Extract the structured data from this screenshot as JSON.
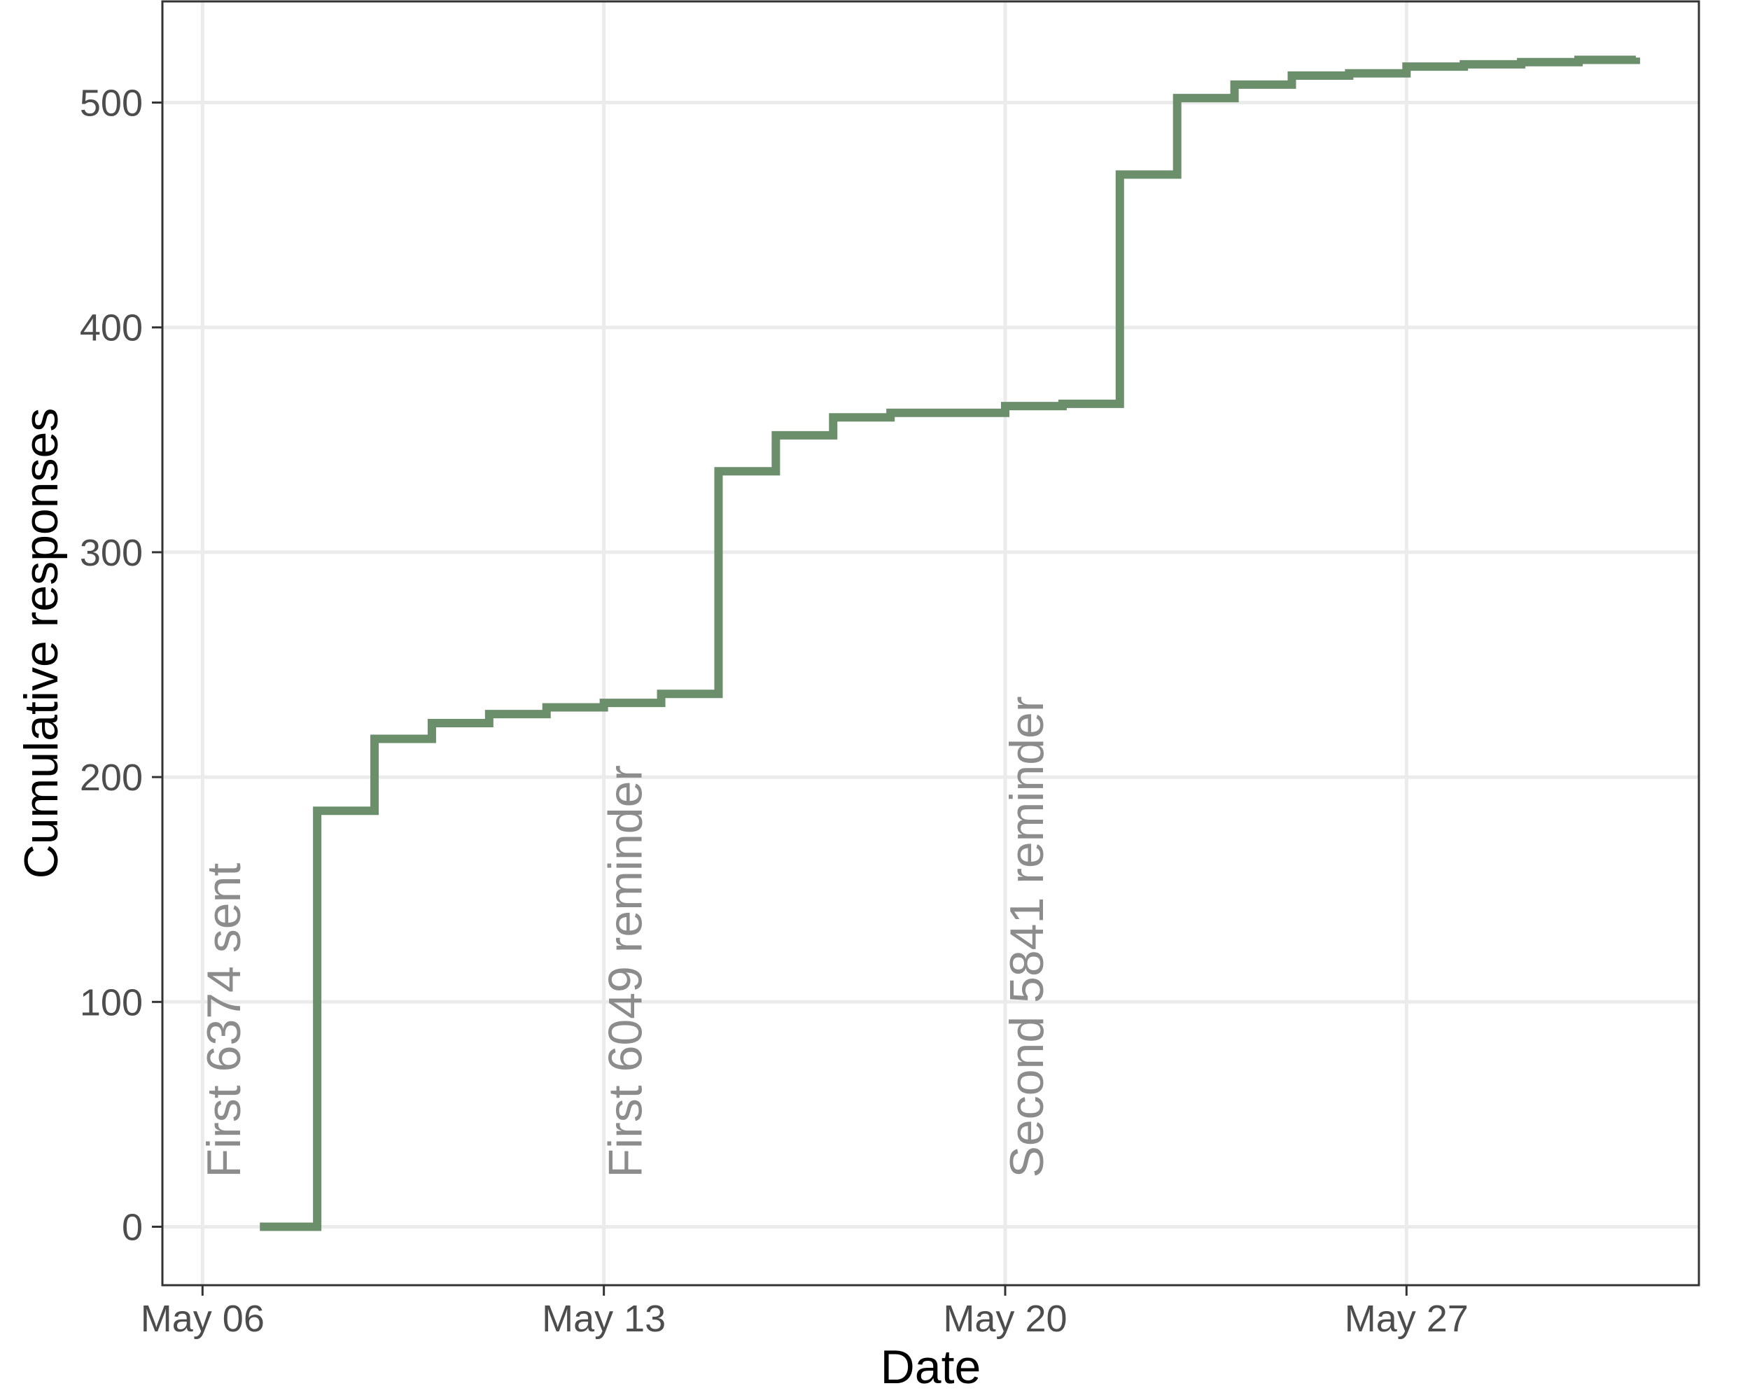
{
  "chart_data": {
    "type": "line",
    "step": true,
    "xlabel": "Date",
    "ylabel": "Cumulative responses",
    "x_ticks": [
      "2019-05-06",
      "2019-05-13",
      "2019-05-20",
      "2019-05-27"
    ],
    "x_tick_labels": [
      "May 06",
      "May 13",
      "May 20",
      "May 27"
    ],
    "y_ticks": [
      0,
      100,
      200,
      300,
      400,
      500
    ],
    "xlim": [
      "2019-05-05.3",
      "2019-06-01.1"
    ],
    "ylim": [
      -26,
      545
    ],
    "grid": true,
    "legend": "none",
    "colors": {
      "line": "#6b8e6b",
      "annotation": "#8c8c8c",
      "grid": "#ebebeb",
      "axis": "#333333"
    },
    "series": [
      {
        "x": [
          "2019-05-07",
          "2019-05-08",
          "2019-05-09",
          "2019-05-10",
          "2019-05-11",
          "2019-05-12",
          "2019-05-13",
          "2019-05-14",
          "2019-05-15",
          "2019-05-16",
          "2019-05-17",
          "2019-05-18",
          "2019-05-19",
          "2019-05-20",
          "2019-05-21",
          "2019-05-22",
          "2019-05-23",
          "2019-05-24",
          "2019-05-25",
          "2019-05-26",
          "2019-05-27",
          "2019-05-28",
          "2019-05-29",
          "2019-05-30",
          "2019-05-31"
        ],
        "y": [
          0,
          185,
          217,
          224,
          228,
          231,
          233,
          237,
          336,
          352,
          360,
          362,
          362,
          365,
          366,
          468,
          502,
          508,
          512,
          513,
          516,
          517,
          518,
          519,
          520
        ]
      }
    ],
    "annotations": [
      {
        "date": "2019-05-07",
        "text": "First 6374 sent"
      },
      {
        "date": "2019-05-14",
        "text": "First 6049 reminder"
      },
      {
        "date": "2019-05-21",
        "text": "Second 5841 reminder"
      }
    ]
  }
}
